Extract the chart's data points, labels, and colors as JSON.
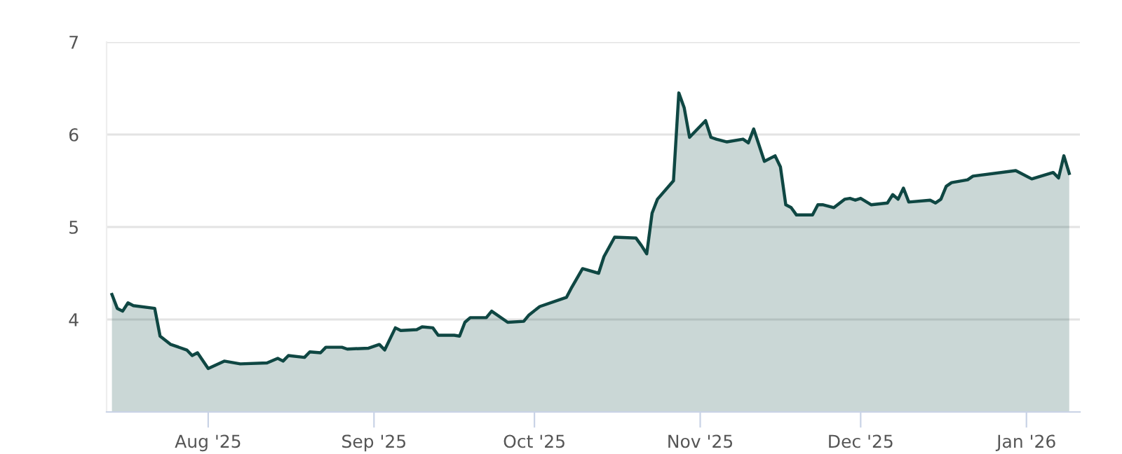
{
  "chart_data": {
    "type": "area",
    "color": "#0f4743",
    "x": [
      "2025-07-14",
      "2025-07-15",
      "2025-07-16",
      "2025-07-17",
      "2025-07-18",
      "2025-07-22",
      "2025-07-23",
      "2025-07-25",
      "2025-07-28",
      "2025-07-29",
      "2025-07-30",
      "2025-08-01",
      "2025-08-04",
      "2025-08-07",
      "2025-08-12",
      "2025-08-14",
      "2025-08-15",
      "2025-08-16",
      "2025-08-19",
      "2025-08-20",
      "2025-08-22",
      "2025-08-23",
      "2025-08-26",
      "2025-08-27",
      "2025-08-31",
      "2025-09-02",
      "2025-09-03",
      "2025-09-05",
      "2025-09-06",
      "2025-09-09",
      "2025-09-10",
      "2025-09-12",
      "2025-09-13",
      "2025-09-16",
      "2025-09-17",
      "2025-09-18",
      "2025-09-19",
      "2025-09-22",
      "2025-09-23",
      "2025-09-26",
      "2025-09-29",
      "2025-09-30",
      "2025-10-02",
      "2025-10-07",
      "2025-10-08",
      "2025-10-10",
      "2025-10-13",
      "2025-10-14",
      "2025-10-16",
      "2025-10-20",
      "2025-10-21",
      "2025-10-22",
      "2025-10-23",
      "2025-10-24",
      "2025-10-27",
      "2025-10-28",
      "2025-10-29",
      "2025-10-30",
      "2025-11-02",
      "2025-11-03",
      "2025-11-04",
      "2025-11-06",
      "2025-11-09",
      "2025-11-10",
      "2025-11-11",
      "2025-11-13",
      "2025-11-15",
      "2025-11-16",
      "2025-11-17",
      "2025-11-18",
      "2025-11-19",
      "2025-11-22",
      "2025-11-23",
      "2025-11-24",
      "2025-11-26",
      "2025-11-28",
      "2025-11-29",
      "2025-11-30",
      "2025-12-01",
      "2025-12-03",
      "2025-12-06",
      "2025-12-07",
      "2025-12-08",
      "2025-12-09",
      "2025-12-10",
      "2025-12-14",
      "2025-12-15",
      "2025-12-16",
      "2025-12-17",
      "2025-12-18",
      "2025-12-21",
      "2025-12-22",
      "2025-12-30",
      "2026-01-02",
      "2026-01-06",
      "2026-01-07",
      "2026-01-08",
      "2026-01-09"
    ],
    "values": [
      4.27,
      4.12,
      4.09,
      4.18,
      4.15,
      4.12,
      3.82,
      3.73,
      3.67,
      3.61,
      3.64,
      3.47,
      3.55,
      3.52,
      3.53,
      3.58,
      3.55,
      3.61,
      3.59,
      3.65,
      3.64,
      3.7,
      3.7,
      3.68,
      3.69,
      3.73,
      3.67,
      3.91,
      3.88,
      3.89,
      3.92,
      3.91,
      3.83,
      3.83,
      3.82,
      3.97,
      4.02,
      4.02,
      4.09,
      3.97,
      3.98,
      4.05,
      4.14,
      4.24,
      4.35,
      4.55,
      4.5,
      4.68,
      4.89,
      4.88,
      4.8,
      4.71,
      5.15,
      5.3,
      5.5,
      6.45,
      6.29,
      5.97,
      6.15,
      5.97,
      5.95,
      5.92,
      5.95,
      5.91,
      6.06,
      5.71,
      5.77,
      5.65,
      5.24,
      5.21,
      5.13,
      5.13,
      5.24,
      5.24,
      5.21,
      5.3,
      5.31,
      5.29,
      5.31,
      5.24,
      5.26,
      5.35,
      5.3,
      5.42,
      5.27,
      5.29,
      5.26,
      5.3,
      5.44,
      5.48,
      5.51,
      5.55,
      5.61,
      5.52,
      5.59,
      5.53,
      5.77,
      5.58
    ],
    "xlim": [
      "2025-07-13",
      "2026-01-11"
    ],
    "xticks": [
      {
        "value": "2025-08-01",
        "label": "Aug '25"
      },
      {
        "value": "2025-09-01",
        "label": "Sep '25"
      },
      {
        "value": "2025-10-01",
        "label": "Oct '25"
      },
      {
        "value": "2025-11-01",
        "label": "Nov '25"
      },
      {
        "value": "2025-12-01",
        "label": "Dec '25"
      },
      {
        "value": "2026-01-01",
        "label": "Jan '26"
      }
    ],
    "ylim": [
      3,
      7
    ],
    "yticks": [
      4,
      5,
      6,
      7
    ],
    "grid": "y",
    "legend": false
  }
}
